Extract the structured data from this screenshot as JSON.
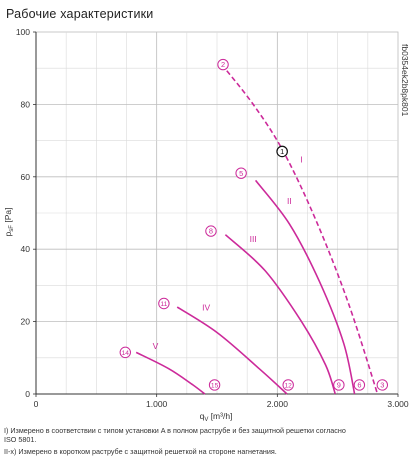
{
  "title": "Рабочие характеристики",
  "chart_data": {
    "type": "line",
    "xlabel": "qV [m³/h]",
    "xlabel_main": "q",
    "xlabel_sub": "V",
    "xlabel_unit": " [m³/h]",
    "ylabel_main": "p",
    "ylabel_sub": "sF",
    "ylabel_unit": " [Pa]",
    "xlim": [
      0,
      3000
    ],
    "ylim": [
      0,
      100
    ],
    "x_ticks": [
      0,
      1000,
      2000,
      3000
    ],
    "x_tick_labels": [
      "0",
      "1.000",
      "2.000",
      "3.000"
    ],
    "y_ticks": [
      0,
      20,
      40,
      60,
      80,
      100
    ],
    "y_tick_labels": [
      "0",
      "20",
      "40",
      "60",
      "80",
      "100"
    ],
    "grid": true,
    "curve_color": "#cc2a9a",
    "series": [
      {
        "name": "I",
        "dashed": true,
        "x": [
          1540,
          1800,
          2050,
          2320,
          2590,
          2830
        ],
        "y": [
          91,
          80,
          67,
          48,
          25,
          0
        ]
      },
      {
        "name": "II",
        "dashed": false,
        "x": [
          1820,
          2100,
          2350,
          2550,
          2640
        ],
        "y": [
          59,
          47,
          31,
          14,
          0
        ]
      },
      {
        "name": "III",
        "dashed": false,
        "x": [
          1570,
          1900,
          2200,
          2400,
          2480
        ],
        "y": [
          44,
          34,
          20,
          8,
          0
        ]
      },
      {
        "name": "IV",
        "dashed": false,
        "x": [
          1170,
          1500,
          1850,
          2080
        ],
        "y": [
          24,
          17,
          7,
          0
        ]
      },
      {
        "name": "V",
        "dashed": false,
        "x": [
          830,
          1100,
          1300,
          1400
        ],
        "y": [
          11.5,
          7,
          2.5,
          0
        ]
      }
    ],
    "point_markers": [
      {
        "label": "2",
        "x": 1550,
        "y": 91
      },
      {
        "label": "5",
        "x": 1700,
        "y": 61
      },
      {
        "label": "8",
        "x": 1450,
        "y": 45
      },
      {
        "label": "11",
        "x": 1060,
        "y": 25
      },
      {
        "label": "14",
        "x": 740,
        "y": 11.5
      },
      {
        "label": "15",
        "x": 1480,
        "y": 2.5
      },
      {
        "label": "12",
        "x": 2090,
        "y": 2.5
      },
      {
        "label": "9",
        "x": 2510,
        "y": 2.5
      },
      {
        "label": "6",
        "x": 2680,
        "y": 2.5
      },
      {
        "label": "3",
        "x": 2870,
        "y": 2.5
      }
    ],
    "operating_point": {
      "label": "1",
      "x": 2040,
      "y": 67
    },
    "curve_labels": [
      {
        "text": "I",
        "x": 2200,
        "y": 64
      },
      {
        "text": "II",
        "x": 2100,
        "y": 52.5
      },
      {
        "text": "III",
        "x": 1800,
        "y": 42
      },
      {
        "text": "IV",
        "x": 1410,
        "y": 23
      },
      {
        "text": "V",
        "x": 990,
        "y": 12.5
      }
    ],
    "side_code": "fb0354ek2b8pk801"
  },
  "notes": [
    "I) Измерено в соответствии с типом установки A в полном раструбе и без защитной решетки согласно",
    "ISO 5801.",
    "II-x) Измерено в коротком раструбе с защитной решеткой на стороне нагнетания."
  ]
}
